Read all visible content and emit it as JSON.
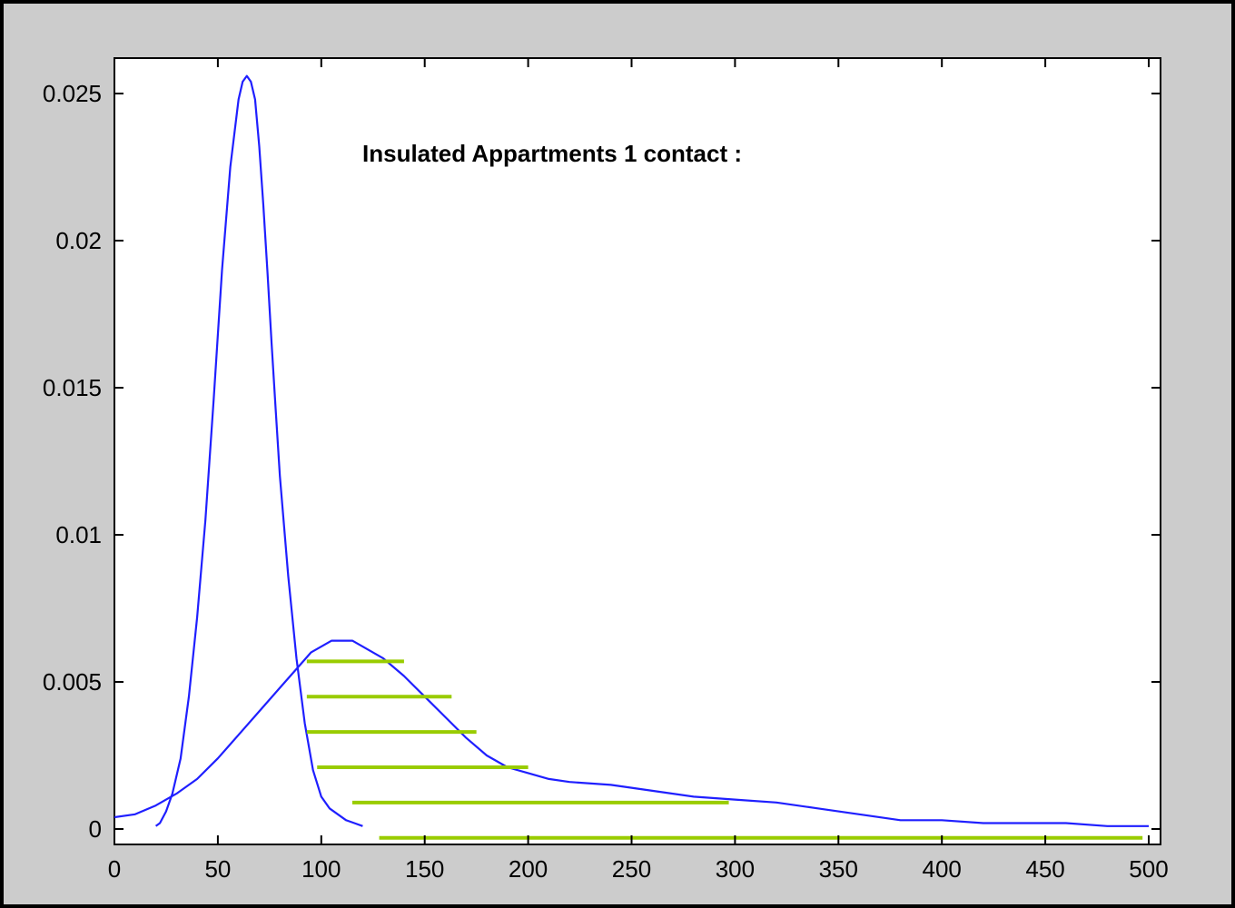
{
  "chart_data": {
    "type": "line",
    "title": "",
    "xlabel": "",
    "ylabel": "",
    "xlim": [
      0,
      500
    ],
    "ylim": [
      0,
      0.026
    ],
    "grid": false,
    "x_ticks": [
      0,
      50,
      100,
      150,
      200,
      250,
      300,
      350,
      400,
      450,
      500
    ],
    "x_tick_labels": [
      "0",
      "50",
      "100",
      "150",
      "200",
      "250",
      "300",
      "350",
      "400",
      "450",
      "500"
    ],
    "y_ticks": [
      0,
      0.005,
      0.01,
      0.015,
      0.02,
      0.025
    ],
    "y_tick_labels": [
      "0",
      "0.005",
      "0.01",
      "0.015",
      "0.02",
      "0.025"
    ],
    "annotation": "Insulated Appartments 1 contact :",
    "colors": {
      "background": "#cccccc",
      "plot_area": "#ffffff",
      "curve": "#1f1fff",
      "hatch": "#99cc00"
    },
    "series": [
      {
        "color": "#1f1fff",
        "x": [
          20,
          22,
          25,
          28,
          32,
          36,
          40,
          44,
          48,
          52,
          56,
          60,
          62,
          64,
          66,
          68,
          70,
          72,
          74,
          76,
          78,
          80,
          84,
          88,
          92,
          96,
          100,
          104,
          108,
          112,
          116,
          120
        ],
        "y": [
          0.0001,
          0.0002,
          0.0006,
          0.0012,
          0.0024,
          0.0045,
          0.0072,
          0.0105,
          0.0146,
          0.019,
          0.0225,
          0.0248,
          0.0254,
          0.0256,
          0.0254,
          0.0248,
          0.0232,
          0.0212,
          0.0189,
          0.0165,
          0.0142,
          0.012,
          0.0086,
          0.0058,
          0.0036,
          0.002,
          0.0011,
          0.0007,
          0.0005,
          0.0003,
          0.0002,
          0.0001
        ]
      },
      {
        "color": "#1f1fff",
        "x": [
          0,
          10,
          20,
          30,
          40,
          50,
          60,
          70,
          80,
          90,
          95,
          100,
          105,
          110,
          115,
          120,
          130,
          140,
          150,
          160,
          170,
          180,
          190,
          200,
          210,
          220,
          240,
          260,
          280,
          300,
          320,
          340,
          360,
          380,
          400,
          420,
          440,
          460,
          480,
          500
        ],
        "y": [
          0.0004,
          0.0005,
          0.0008,
          0.0012,
          0.0017,
          0.0024,
          0.0032,
          0.004,
          0.0048,
          0.0056,
          0.006,
          0.0062,
          0.0064,
          0.0064,
          0.0064,
          0.0062,
          0.0058,
          0.0052,
          0.0045,
          0.0038,
          0.0031,
          0.0025,
          0.0021,
          0.0019,
          0.0017,
          0.0016,
          0.0015,
          0.0013,
          0.0011,
          0.001,
          0.0009,
          0.0007,
          0.0005,
          0.0003,
          0.0003,
          0.0002,
          0.0002,
          0.0002,
          0.0001,
          0.0001
        ]
      }
    ],
    "hatch_lines": [
      {
        "x_start": 93,
        "x_end": 140,
        "y": 0.0057
      },
      {
        "x_start": 93,
        "x_end": 163,
        "y": 0.0045
      },
      {
        "x_start": 93,
        "x_end": 175,
        "y": 0.0033
      },
      {
        "x_start": 98,
        "x_end": 200,
        "y": 0.0021
      },
      {
        "x_start": 115,
        "x_end": 297,
        "y": 0.0009
      },
      {
        "x_start": 128,
        "x_end": 497,
        "y": -0.0003
      }
    ]
  }
}
